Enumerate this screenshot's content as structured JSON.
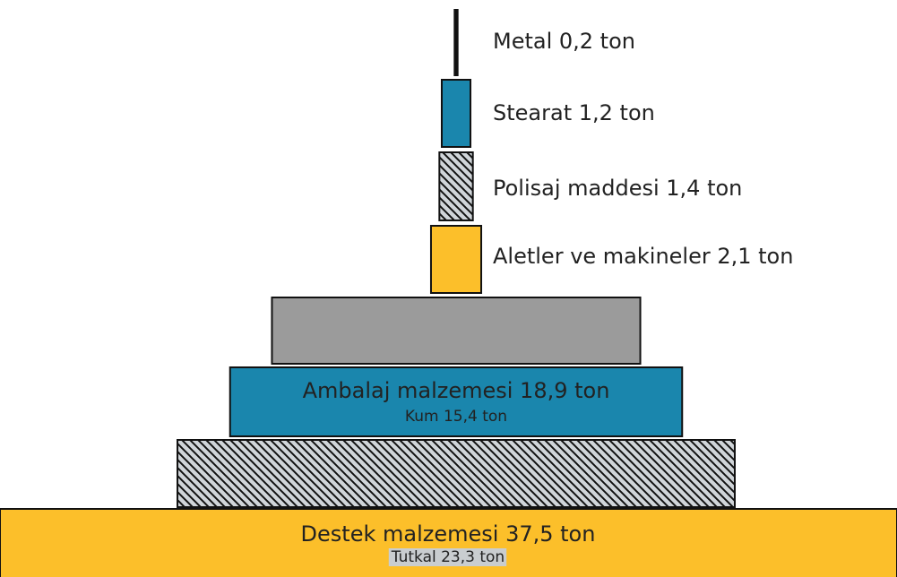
{
  "chart_data": {
    "type": "pyramid",
    "items": [
      {
        "label": "Destek malzemesi 37,5 ton",
        "value": 37.5,
        "color": "#fcbf2a"
      },
      {
        "label": "Tutkal 23,3 ton",
        "value": 23.3,
        "color": "#d0d5d9",
        "hatch": true
      },
      {
        "label": "Ambalaj malzemesi 18,9 ton",
        "value": 18.9,
        "color": "#1a86ad"
      },
      {
        "label": "Kum 15,4 ton",
        "value": 15.4,
        "color": "#9b9b9b"
      },
      {
        "label": "Aletler ve makineler 2,1 ton",
        "value": 2.1,
        "color": "#fcbf2a"
      },
      {
        "label": "Polisaj maddesi 1,4 ton",
        "value": 1.4,
        "color": "#d0d5d9",
        "hatch": true
      },
      {
        "label": "Stearat 1,2 ton",
        "value": 1.2,
        "color": "#1a86ad"
      },
      {
        "label": "Metal 0,2 ton",
        "value": 0.2,
        "color": "#111111"
      }
    ]
  }
}
